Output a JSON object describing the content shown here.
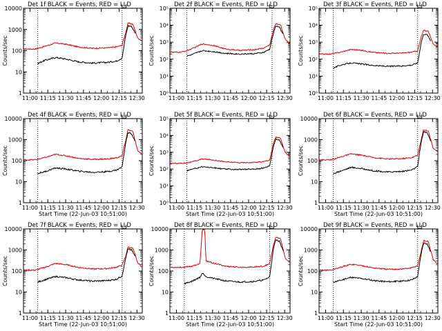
{
  "figure": {
    "colors": {
      "events": "#000000",
      "lld": "#e00000",
      "axes": "#000000",
      "background": "#ffffff"
    }
  },
  "chart_data": [
    {
      "type": "line",
      "title": "Det 1f BLACK = Events, RED = LLD",
      "ylabel": "Counts/sec",
      "xlabel": "",
      "xtick_labels": [
        "11:00",
        "11:15",
        "11:30",
        "11:45",
        "12:00",
        "12:15",
        "12:30"
      ],
      "ytick_labels": [
        "1",
        "10",
        "100",
        "1000",
        "10000"
      ],
      "ylog_range": [
        0,
        4
      ],
      "events_start": 0.12,
      "markers": [
        0.12,
        0.83
      ],
      "lld_level": 120,
      "events_level": 25,
      "lld_curve": [
        [
          0.0,
          120
        ],
        [
          0.1,
          120
        ],
        [
          0.18,
          160
        ],
        [
          0.27,
          230
        ],
        [
          0.36,
          200
        ],
        [
          0.46,
          150
        ],
        [
          0.58,
          130
        ],
        [
          0.7,
          135
        ],
        [
          0.78,
          150
        ],
        [
          0.83,
          180
        ],
        [
          0.86,
          700
        ],
        [
          0.88,
          2000
        ],
        [
          0.92,
          1800
        ],
        [
          0.94,
          900
        ],
        [
          0.96,
          400
        ],
        [
          1.0,
          300
        ]
      ],
      "events_curve": [
        [
          0.12,
          25
        ],
        [
          0.18,
          35
        ],
        [
          0.27,
          48
        ],
        [
          0.36,
          40
        ],
        [
          0.46,
          30
        ],
        [
          0.58,
          26
        ],
        [
          0.7,
          28
        ],
        [
          0.78,
          32
        ],
        [
          0.83,
          45
        ],
        [
          0.86,
          500
        ],
        [
          0.88,
          1500
        ],
        [
          0.91,
          1400
        ],
        [
          0.94,
          700
        ]
      ],
      "spike": null
    },
    {
      "type": "line",
      "title": "Det 2f BLACK = Events, RED = LLD",
      "ylabel": "Counts/sec",
      "xlabel": "",
      "xtick_labels": [
        "11:00",
        "11:15",
        "11:30",
        "11:45",
        "12:00",
        "12:15",
        "12:30"
      ],
      "ytick_labels": [
        "10⁰",
        "10¹",
        "10²",
        "10³",
        "10⁴",
        "10⁵"
      ],
      "ylog_range": [
        0,
        5
      ],
      "events_start": 0.14,
      "markers": [
        0.14,
        0.85
      ],
      "lld_level": 200,
      "events_level": 150,
      "lld_curve": [
        [
          0.0,
          250
        ],
        [
          0.1,
          260
        ],
        [
          0.18,
          400
        ],
        [
          0.27,
          800
        ],
        [
          0.36,
          650
        ],
        [
          0.46,
          400
        ],
        [
          0.58,
          330
        ],
        [
          0.7,
          360
        ],
        [
          0.78,
          450
        ],
        [
          0.83,
          700
        ],
        [
          0.86,
          5000
        ],
        [
          0.88,
          12000
        ],
        [
          0.92,
          11000
        ],
        [
          0.94,
          4000
        ],
        [
          0.96,
          1500
        ],
        [
          1.0,
          800
        ]
      ],
      "events_curve": [
        [
          0.14,
          150
        ],
        [
          0.18,
          180
        ],
        [
          0.27,
          320
        ],
        [
          0.36,
          280
        ],
        [
          0.46,
          220
        ],
        [
          0.58,
          200
        ],
        [
          0.7,
          210
        ],
        [
          0.78,
          250
        ],
        [
          0.83,
          380
        ],
        [
          0.86,
          3000
        ],
        [
          0.88,
          9000
        ],
        [
          0.91,
          8000
        ],
        [
          0.94,
          3000
        ]
      ],
      "spike": null
    },
    {
      "type": "line",
      "title": "Det 3f BLACK = Events, RED = LLD",
      "ylabel": "Counts/sec",
      "xlabel": "",
      "xtick_labels": [
        "11:00",
        "11:15",
        "11:30",
        "11:45",
        "12:00",
        "12:15",
        "12:30"
      ],
      "ytick_labels": [
        "10⁰",
        "10¹",
        "10²",
        "10³",
        "10⁴",
        "10⁵"
      ],
      "ylog_range": [
        0,
        5
      ],
      "events_start": 0.12,
      "markers": [
        0.12,
        0.83
      ],
      "lld_level": 200,
      "events_level": 30,
      "lld_curve": [
        [
          0.0,
          200
        ],
        [
          0.1,
          200
        ],
        [
          0.18,
          260
        ],
        [
          0.27,
          380
        ],
        [
          0.36,
          330
        ],
        [
          0.46,
          250
        ],
        [
          0.58,
          220
        ],
        [
          0.7,
          230
        ],
        [
          0.78,
          260
        ],
        [
          0.83,
          320
        ],
        [
          0.86,
          2000
        ],
        [
          0.88,
          5000
        ],
        [
          0.92,
          4500
        ],
        [
          0.94,
          1800
        ],
        [
          0.96,
          800
        ],
        [
          1.0,
          500
        ]
      ],
      "events_curve": [
        [
          0.12,
          30
        ],
        [
          0.18,
          45
        ],
        [
          0.27,
          60
        ],
        [
          0.36,
          52
        ],
        [
          0.46,
          42
        ],
        [
          0.58,
          38
        ],
        [
          0.7,
          40
        ],
        [
          0.78,
          45
        ],
        [
          0.83,
          60
        ],
        [
          0.86,
          1000
        ],
        [
          0.88,
          3000
        ],
        [
          0.91,
          2800
        ],
        [
          0.94,
          1200
        ]
      ],
      "spike": null
    },
    {
      "type": "line",
      "title": "Det 4f BLACK = Events, RED = LLD",
      "ylabel": "Counts/sec",
      "xlabel": "Start Time (22-Jun-03 10:51:00)",
      "xtick_labels": [
        "11:00",
        "11:15",
        "11:30",
        "11:45",
        "12:00",
        "12:15",
        "12:30"
      ],
      "ytick_labels": [
        "1",
        "10",
        "100",
        "1000",
        "10000"
      ],
      "ylog_range": [
        0,
        4
      ],
      "events_start": 0.12,
      "markers": [
        0.12,
        0.83
      ],
      "lld_level": 120,
      "events_level": 25,
      "lld_curve": [
        [
          0.0,
          110
        ],
        [
          0.1,
          110
        ],
        [
          0.18,
          140
        ],
        [
          0.27,
          200
        ],
        [
          0.36,
          170
        ],
        [
          0.46,
          130
        ],
        [
          0.58,
          115
        ],
        [
          0.7,
          120
        ],
        [
          0.78,
          135
        ],
        [
          0.83,
          170
        ],
        [
          0.86,
          900
        ],
        [
          0.88,
          3000
        ],
        [
          0.92,
          2500
        ],
        [
          0.94,
          900
        ],
        [
          0.96,
          300
        ],
        [
          1.0,
          200
        ]
      ],
      "events_curve": [
        [
          0.12,
          25
        ],
        [
          0.18,
          30
        ],
        [
          0.27,
          45
        ],
        [
          0.36,
          40
        ],
        [
          0.46,
          32
        ],
        [
          0.58,
          28
        ],
        [
          0.7,
          30
        ],
        [
          0.78,
          35
        ],
        [
          0.83,
          50
        ],
        [
          0.86,
          700
        ],
        [
          0.88,
          2200
        ],
        [
          0.91,
          2000
        ],
        [
          0.94,
          800
        ]
      ],
      "spike": null
    },
    {
      "type": "line",
      "title": "Det 5f BLACK = Events, RED = LLD",
      "ylabel": "Counts/sec",
      "xlabel": "Start Time (22-Jun-03 10:51:00)",
      "xtick_labels": [
        "11:00",
        "11:15",
        "11:30",
        "11:45",
        "12:00",
        "12:15",
        "12:30"
      ],
      "ytick_labels": [
        "10⁰",
        "10¹",
        "10²",
        "10³",
        "10⁴",
        "10⁵"
      ],
      "ylog_range": [
        0,
        5
      ],
      "events_start": 0.14,
      "markers": [
        0.14,
        0.85
      ],
      "lld_level": 200,
      "events_level": 80,
      "lld_curve": [
        [
          0.0,
          220
        ],
        [
          0.1,
          220
        ],
        [
          0.18,
          260
        ],
        [
          0.27,
          400
        ],
        [
          0.36,
          350
        ],
        [
          0.46,
          270
        ],
        [
          0.58,
          240
        ],
        [
          0.7,
          250
        ],
        [
          0.78,
          280
        ],
        [
          0.83,
          350
        ],
        [
          0.86,
          3000
        ],
        [
          0.88,
          8000
        ],
        [
          0.92,
          7000
        ],
        [
          0.94,
          2500
        ],
        [
          0.96,
          900
        ],
        [
          1.0,
          600
        ]
      ],
      "events_curve": [
        [
          0.14,
          80
        ],
        [
          0.18,
          95
        ],
        [
          0.27,
          140
        ],
        [
          0.36,
          120
        ],
        [
          0.46,
          100
        ],
        [
          0.58,
          95
        ],
        [
          0.7,
          100
        ],
        [
          0.78,
          115
        ],
        [
          0.83,
          160
        ],
        [
          0.86,
          2000
        ],
        [
          0.88,
          6000
        ],
        [
          0.91,
          5500
        ],
        [
          0.94,
          2000
        ]
      ],
      "spike": null
    },
    {
      "type": "line",
      "title": "Det 6f BLACK = Events, RED = LLD",
      "ylabel": "Counts/sec",
      "xlabel": "Start Time (22-Jun-03 10:51:00)",
      "xtick_labels": [
        "11:00",
        "11:15",
        "11:30",
        "11:45",
        "12:00",
        "12:15",
        "12:30"
      ],
      "ytick_labels": [
        "1",
        "10",
        "100",
        "1000",
        "10000"
      ],
      "ylog_range": [
        0,
        4
      ],
      "events_start": 0.12,
      "markers": [
        0.12,
        0.83
      ],
      "lld_level": 120,
      "events_level": 25,
      "lld_curve": [
        [
          0.0,
          110
        ],
        [
          0.1,
          110
        ],
        [
          0.18,
          150
        ],
        [
          0.27,
          210
        ],
        [
          0.36,
          180
        ],
        [
          0.46,
          140
        ],
        [
          0.58,
          120
        ],
        [
          0.7,
          125
        ],
        [
          0.78,
          140
        ],
        [
          0.83,
          180
        ],
        [
          0.86,
          1000
        ],
        [
          0.88,
          3000
        ],
        [
          0.92,
          2600
        ],
        [
          0.94,
          1000
        ],
        [
          0.96,
          400
        ],
        [
          1.0,
          250
        ]
      ],
      "events_curve": [
        [
          0.12,
          25
        ],
        [
          0.18,
          32
        ],
        [
          0.27,
          48
        ],
        [
          0.36,
          42
        ],
        [
          0.46,
          33
        ],
        [
          0.58,
          29
        ],
        [
          0.7,
          31
        ],
        [
          0.78,
          36
        ],
        [
          0.83,
          52
        ],
        [
          0.86,
          800
        ],
        [
          0.88,
          2400
        ],
        [
          0.91,
          2100
        ],
        [
          0.94,
          900
        ]
      ],
      "spike": null
    },
    {
      "type": "line",
      "title": "Det 7f BLACK = Events, RED = LLD",
      "ylabel": "Counts/sec",
      "xlabel": "Start Time (22-Jun-03 10:51:00)",
      "xtick_labels": [
        "11:00",
        "11:15",
        "11:30",
        "11:45",
        "12:00",
        "12:15",
        "12:30"
      ],
      "ytick_labels": [
        "1",
        "10",
        "100",
        "1000",
        "10000"
      ],
      "ylog_range": [
        0,
        4
      ],
      "events_start": 0.12,
      "markers": [
        0.12,
        0.83
      ],
      "lld_level": 120,
      "events_level": 30,
      "lld_curve": [
        [
          0.0,
          110
        ],
        [
          0.1,
          110
        ],
        [
          0.18,
          150
        ],
        [
          0.27,
          230
        ],
        [
          0.36,
          200
        ],
        [
          0.46,
          150
        ],
        [
          0.58,
          125
        ],
        [
          0.7,
          130
        ],
        [
          0.78,
          150
        ],
        [
          0.83,
          190
        ],
        [
          0.86,
          500
        ],
        [
          0.88,
          1400
        ],
        [
          0.92,
          1200
        ],
        [
          0.94,
          600
        ],
        [
          0.96,
          250
        ],
        [
          1.0,
          150
        ]
      ],
      "events_curve": [
        [
          0.12,
          30
        ],
        [
          0.18,
          38
        ],
        [
          0.27,
          55
        ],
        [
          0.36,
          48
        ],
        [
          0.46,
          38
        ],
        [
          0.58,
          33
        ],
        [
          0.7,
          35
        ],
        [
          0.78,
          40
        ],
        [
          0.83,
          58
        ],
        [
          0.86,
          400
        ],
        [
          0.88,
          1100
        ],
        [
          0.91,
          1000
        ],
        [
          0.94,
          500
        ]
      ],
      "spike": null
    },
    {
      "type": "line",
      "title": "Det 8f BLACK = Events, RED = LLD",
      "ylabel": "Counts/sec",
      "xlabel": "Start Time (22-Jun-03 10:51:00)",
      "xtick_labels": [
        "11:00",
        "11:15",
        "11:30",
        "11:45",
        "12:00",
        "12:15",
        "12:30"
      ],
      "ytick_labels": [
        "1",
        "10",
        "100",
        "1000",
        "10000"
      ],
      "ylog_range": [
        0,
        4
      ],
      "events_start": 0.12,
      "markers": [
        0.12,
        0.83
      ],
      "lld_level": 150,
      "events_level": 25,
      "lld_curve": [
        [
          0.0,
          150
        ],
        [
          0.1,
          150
        ],
        [
          0.18,
          170
        ],
        [
          0.25,
          220
        ],
        [
          0.27,
          10000
        ],
        [
          0.29,
          10000
        ],
        [
          0.3,
          300
        ],
        [
          0.36,
          240
        ],
        [
          0.46,
          170
        ],
        [
          0.58,
          150
        ],
        [
          0.7,
          155
        ],
        [
          0.78,
          170
        ],
        [
          0.83,
          220
        ],
        [
          0.86,
          1500
        ],
        [
          0.88,
          4000
        ],
        [
          0.92,
          3500
        ],
        [
          0.94,
          1200
        ],
        [
          0.96,
          400
        ],
        [
          1.0,
          250
        ]
      ],
      "events_curve": [
        [
          0.12,
          25
        ],
        [
          0.18,
          32
        ],
        [
          0.25,
          50
        ],
        [
          0.27,
          80
        ],
        [
          0.29,
          65
        ],
        [
          0.3,
          55
        ],
        [
          0.36,
          45
        ],
        [
          0.46,
          34
        ],
        [
          0.58,
          30
        ],
        [
          0.7,
          32
        ],
        [
          0.78,
          37
        ],
        [
          0.83,
          52
        ],
        [
          0.86,
          1000
        ],
        [
          0.88,
          3000
        ],
        [
          0.91,
          2700
        ],
        [
          0.94,
          1000
        ]
      ],
      "spike": [
        0.26,
        0.3
      ]
    },
    {
      "type": "line",
      "title": "Det 9f BLACK = Events, RED = LLD",
      "ylabel": "Counts/sec",
      "xlabel": "Start Time (22-Jun-03 10:51:00)",
      "xtick_labels": [
        "11:00",
        "11:15",
        "11:30",
        "11:45",
        "12:00",
        "12:15",
        "12:30"
      ],
      "ytick_labels": [
        "1",
        "10",
        "100",
        "1000",
        "10000"
      ],
      "ylog_range": [
        0,
        4
      ],
      "events_start": 0.12,
      "markers": [
        0.12,
        0.83
      ],
      "lld_level": 120,
      "events_level": 30,
      "lld_curve": [
        [
          0.0,
          110
        ],
        [
          0.1,
          110
        ],
        [
          0.18,
          150
        ],
        [
          0.27,
          210
        ],
        [
          0.36,
          180
        ],
        [
          0.46,
          140
        ],
        [
          0.58,
          120
        ],
        [
          0.7,
          125
        ],
        [
          0.78,
          140
        ],
        [
          0.83,
          180
        ],
        [
          0.86,
          900
        ],
        [
          0.88,
          2800
        ],
        [
          0.92,
          2500
        ],
        [
          0.94,
          900
        ],
        [
          0.96,
          350
        ],
        [
          1.0,
          200
        ]
      ],
      "events_curve": [
        [
          0.12,
          30
        ],
        [
          0.18,
          36
        ],
        [
          0.27,
          50
        ],
        [
          0.36,
          44
        ],
        [
          0.46,
          35
        ],
        [
          0.58,
          31
        ],
        [
          0.7,
          33
        ],
        [
          0.78,
          38
        ],
        [
          0.83,
          55
        ],
        [
          0.86,
          700
        ],
        [
          0.88,
          2200
        ],
        [
          0.91,
          2000
        ],
        [
          0.94,
          800
        ]
      ],
      "spike": null
    }
  ]
}
